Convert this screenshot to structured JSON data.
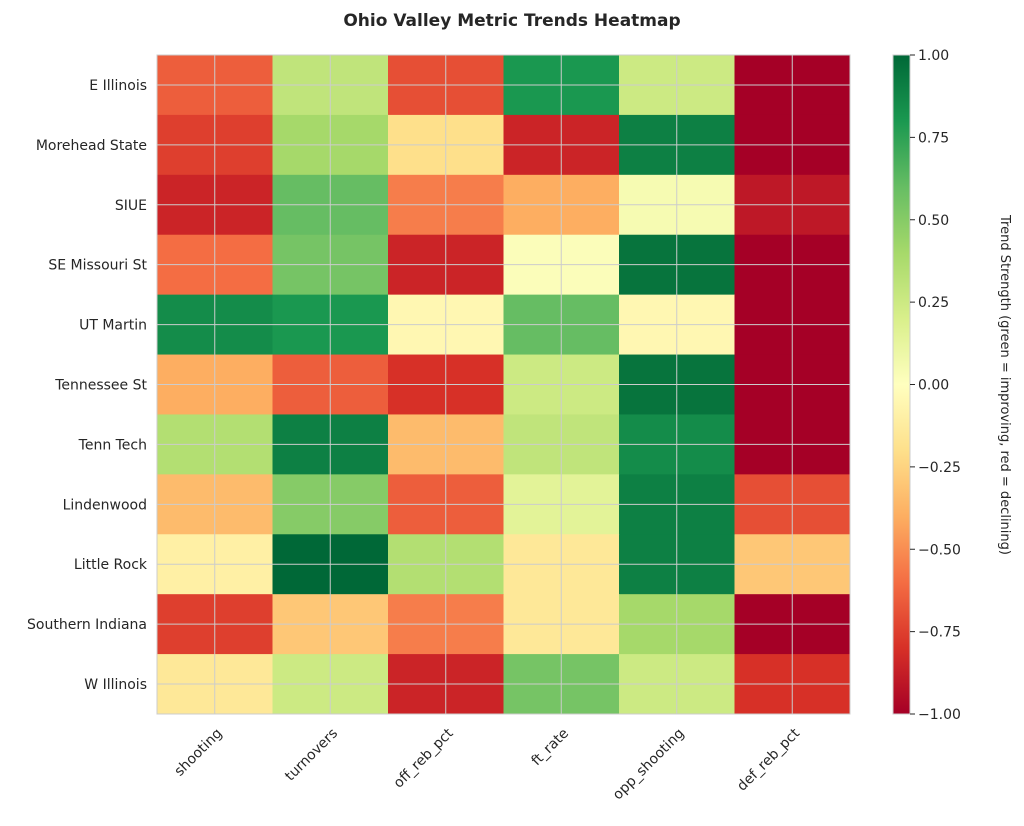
{
  "chart_data": {
    "type": "heatmap",
    "title": "Ohio Valley Metric Trends Heatmap",
    "columns": [
      "shooting",
      "turnovers",
      "off_reb_pct",
      "ft_rate",
      "opp_shooting",
      "def_reb_pct"
    ],
    "rows": [
      "E Illinois",
      "Morehead State",
      "SIUE",
      "SE Missouri St",
      "UT Martin",
      "Tennessee St",
      "Tenn Tech",
      "Lindenwood",
      "Little Rock",
      "Southern Indiana",
      "W Illinois"
    ],
    "values": [
      [
        -0.65,
        0.3,
        -0.7,
        0.8,
        0.25,
        -1.0
      ],
      [
        -0.75,
        0.4,
        -0.2,
        -0.85,
        0.9,
        -1.0
      ],
      [
        -0.85,
        0.6,
        -0.55,
        -0.4,
        0.05,
        -0.9
      ],
      [
        -0.6,
        0.55,
        -0.85,
        0.02,
        0.95,
        -1.0
      ],
      [
        0.85,
        0.8,
        -0.05,
        0.6,
        -0.05,
        -1.0
      ],
      [
        -0.4,
        -0.65,
        -0.8,
        0.25,
        0.95,
        -1.0
      ],
      [
        0.35,
        0.9,
        -0.35,
        0.3,
        0.85,
        -1.0
      ],
      [
        -0.35,
        0.5,
        -0.65,
        0.15,
        0.9,
        -0.7
      ],
      [
        -0.1,
        1.0,
        0.35,
        -0.15,
        0.9,
        -0.3
      ],
      [
        -0.75,
        -0.3,
        -0.55,
        -0.15,
        0.4,
        -1.0
      ],
      [
        -0.15,
        0.25,
        -0.85,
        0.55,
        0.25,
        -0.8
      ]
    ],
    "colormap": "RdYlGn",
    "vmin": -1,
    "vmax": 1,
    "grid": true,
    "colorbar": {
      "label": "Trend Strength (green = improving, red = declining)",
      "ticks": [
        "1.00",
        "0.75",
        "0.50",
        "0.25",
        "0.00",
        "−0.25",
        "−0.50",
        "−0.75",
        "−1.00"
      ]
    }
  }
}
